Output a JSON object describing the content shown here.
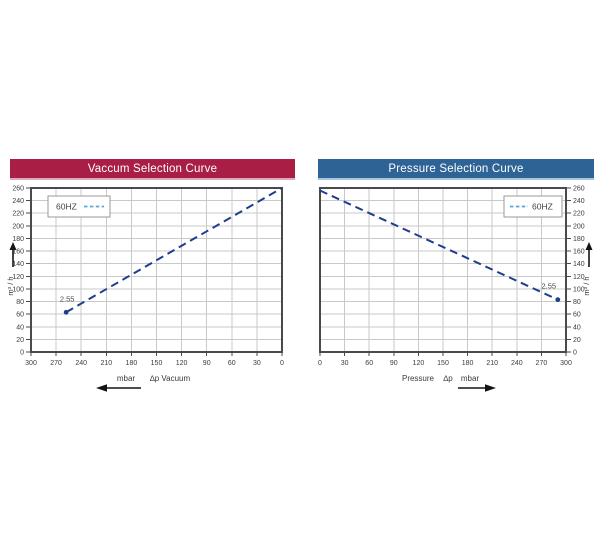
{
  "page": {
    "background": "#ffffff"
  },
  "colors": {
    "grid": "#c9c9c9",
    "plot_border": "#4a4a4a",
    "tick_text": "#3c3c3c",
    "series_line": "#1e3d8f",
    "legend_dash": "#58a9d9",
    "annotation_text": "#4a4a4a",
    "banner_text": "#ffffff",
    "arrow": "#141414"
  },
  "chart_data": [
    {
      "type": "line",
      "title": "Vaccum Selection Curve",
      "banner_color": "#a81e45",
      "banner_accent": "#dfa9bc",
      "x_ticks": [
        300,
        270,
        240,
        210,
        180,
        150,
        120,
        90,
        60,
        30,
        0
      ],
      "x_min": 0,
      "x_max": 300,
      "x_reversed": true,
      "y_ticks": [
        0,
        20,
        40,
        60,
        80,
        100,
        120,
        140,
        160,
        180,
        200,
        220,
        240,
        260
      ],
      "y_min": 0,
      "y_max": 260,
      "y_side": "left",
      "ylabel": "m³ / h",
      "xlabel_parts": [
        "mbar",
        "∆p Vacuum"
      ],
      "x_arrow": "left",
      "grid": true,
      "legend": {
        "label": "60HZ",
        "position": "top-left",
        "order": "label-first"
      },
      "series": [
        {
          "name": "60HZ",
          "dashed": true,
          "points": [
            [
              258,
              63
            ],
            [
              0,
              260
            ]
          ],
          "endpoint_dot": "first",
          "annotation": {
            "text": "2.55",
            "point_index": 0
          }
        }
      ]
    },
    {
      "type": "line",
      "title": "Pressure Selection Curve",
      "banner_color": "#2e6396",
      "banner_accent": "#aac4dd",
      "x_ticks": [
        0,
        30,
        60,
        90,
        120,
        150,
        180,
        210,
        240,
        270,
        300
      ],
      "x_min": 0,
      "x_max": 300,
      "x_reversed": false,
      "y_ticks": [
        0,
        20,
        40,
        60,
        80,
        100,
        120,
        140,
        160,
        180,
        200,
        220,
        240,
        260
      ],
      "y_min": 0,
      "y_max": 260,
      "y_side": "right",
      "ylabel": "m³ / h",
      "xlabel_parts": [
        "Pressure",
        "∆p",
        "mbar"
      ],
      "x_arrow": "right",
      "grid": true,
      "legend": {
        "label": "60HZ",
        "position": "top-right",
        "order": "dash-first"
      },
      "series": [
        {
          "name": "60HZ",
          "dashed": true,
          "points": [
            [
              0,
              256
            ],
            [
              290,
              83
            ]
          ],
          "endpoint_dot": "last",
          "annotation": {
            "text": "2.55",
            "point_index": 1
          }
        }
      ]
    }
  ]
}
